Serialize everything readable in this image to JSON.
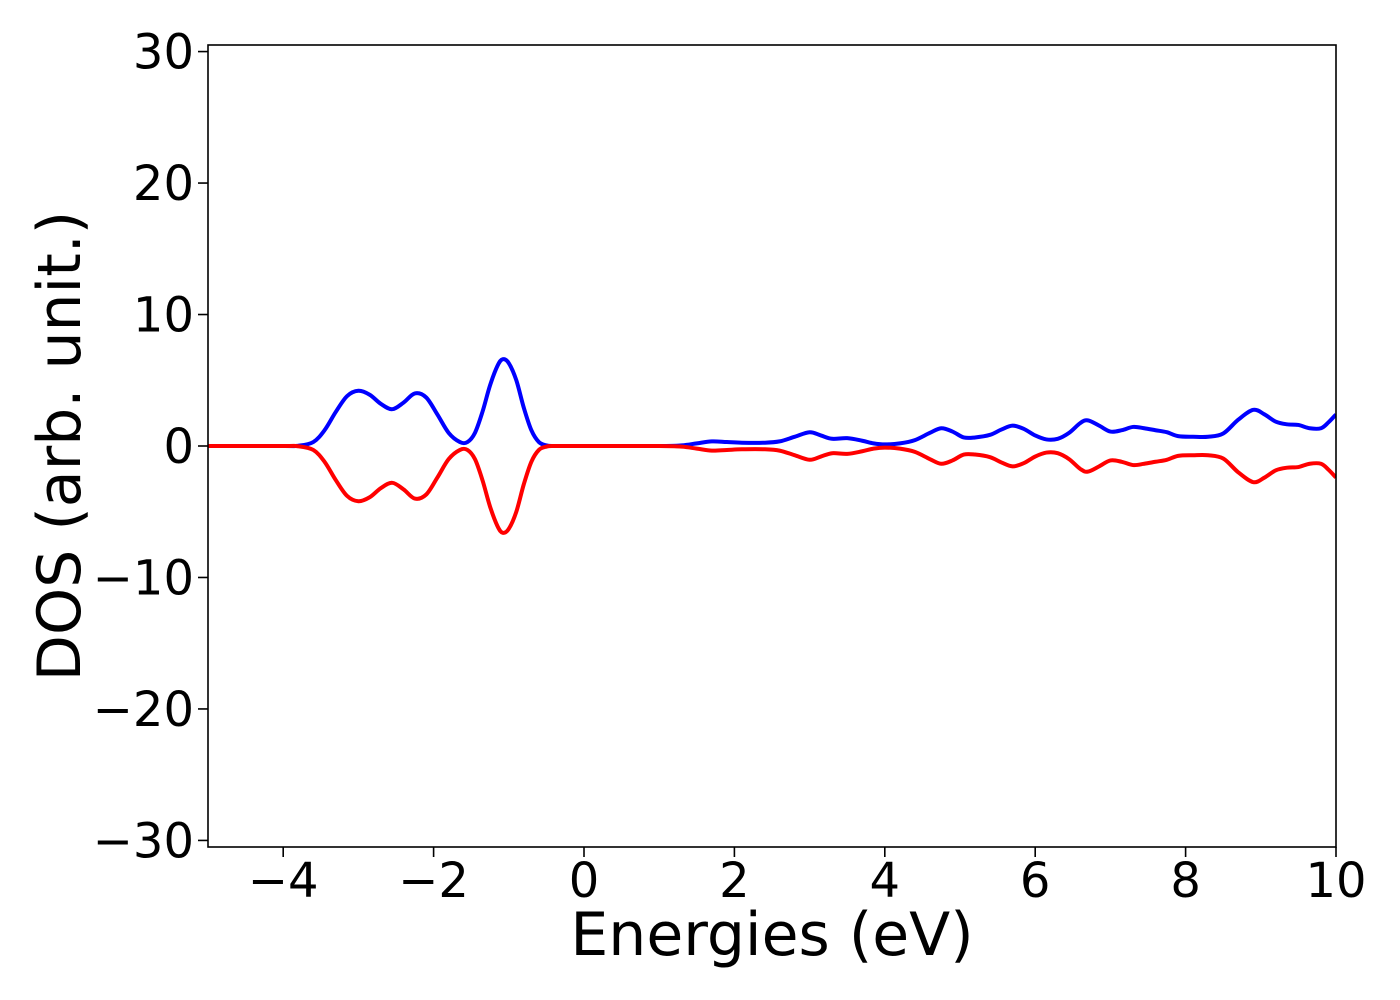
{
  "chart_data": {
    "type": "line",
    "title": "",
    "xlabel": "Energies (eV)",
    "ylabel": "DOS (arb. unit.)",
    "xlim": [
      -5,
      10
    ],
    "ylim": [
      -30.5,
      30.5
    ],
    "x_ticks": [
      -4,
      -2,
      0,
      2,
      4,
      6,
      8,
      10
    ],
    "x_tick_labels": [
      "−4",
      "−2",
      "0",
      "2",
      "4",
      "6",
      "8",
      "10"
    ],
    "y_ticks": [
      -30,
      -20,
      -10,
      0,
      10,
      20,
      30
    ],
    "y_tick_labels": [
      "−30",
      "−20",
      "−10",
      "0",
      "10",
      "20",
      "30"
    ],
    "grid": false,
    "legend": "none",
    "series": [
      {
        "color": "#0000ff",
        "points": [
          [
            -5.0,
            0
          ],
          [
            -4.0,
            0
          ],
          [
            -3.8,
            0.02
          ],
          [
            -3.6,
            0.3
          ],
          [
            -3.45,
            1.2
          ],
          [
            -3.3,
            2.6
          ],
          [
            -3.15,
            3.8
          ],
          [
            -3.0,
            4.2
          ],
          [
            -2.85,
            3.9
          ],
          [
            -2.7,
            3.2
          ],
          [
            -2.55,
            2.8
          ],
          [
            -2.4,
            3.3
          ],
          [
            -2.25,
            4.0
          ],
          [
            -2.1,
            3.7
          ],
          [
            -1.95,
            2.4
          ],
          [
            -1.8,
            1.0
          ],
          [
            -1.65,
            0.3
          ],
          [
            -1.55,
            0.3
          ],
          [
            -1.45,
            1.0
          ],
          [
            -1.35,
            2.6
          ],
          [
            -1.25,
            4.6
          ],
          [
            -1.15,
            6.1
          ],
          [
            -1.08,
            6.6
          ],
          [
            -1.0,
            6.3
          ],
          [
            -0.9,
            5.0
          ],
          [
            -0.8,
            2.9
          ],
          [
            -0.7,
            1.2
          ],
          [
            -0.6,
            0.3
          ],
          [
            -0.5,
            0.05
          ],
          [
            -0.4,
            0.0
          ],
          [
            0.0,
            0.0
          ],
          [
            1.0,
            0.0
          ],
          [
            1.3,
            0.05
          ],
          [
            1.5,
            0.2
          ],
          [
            1.7,
            0.35
          ],
          [
            1.9,
            0.3
          ],
          [
            2.1,
            0.25
          ],
          [
            2.4,
            0.25
          ],
          [
            2.6,
            0.35
          ],
          [
            2.8,
            0.7
          ],
          [
            3.0,
            1.05
          ],
          [
            3.15,
            0.8
          ],
          [
            3.3,
            0.55
          ],
          [
            3.5,
            0.6
          ],
          [
            3.7,
            0.4
          ],
          [
            3.85,
            0.2
          ],
          [
            4.0,
            0.12
          ],
          [
            4.2,
            0.2
          ],
          [
            4.4,
            0.45
          ],
          [
            4.6,
            1.0
          ],
          [
            4.75,
            1.35
          ],
          [
            4.9,
            1.1
          ],
          [
            5.05,
            0.65
          ],
          [
            5.2,
            0.65
          ],
          [
            5.4,
            0.85
          ],
          [
            5.55,
            1.25
          ],
          [
            5.7,
            1.55
          ],
          [
            5.85,
            1.3
          ],
          [
            6.0,
            0.8
          ],
          [
            6.15,
            0.5
          ],
          [
            6.3,
            0.55
          ],
          [
            6.45,
            1.0
          ],
          [
            6.6,
            1.75
          ],
          [
            6.7,
            1.95
          ],
          [
            6.85,
            1.55
          ],
          [
            7.0,
            1.1
          ],
          [
            7.15,
            1.2
          ],
          [
            7.3,
            1.45
          ],
          [
            7.45,
            1.35
          ],
          [
            7.6,
            1.2
          ],
          [
            7.75,
            1.05
          ],
          [
            7.9,
            0.75
          ],
          [
            8.1,
            0.7
          ],
          [
            8.3,
            0.7
          ],
          [
            8.5,
            0.95
          ],
          [
            8.7,
            2.0
          ],
          [
            8.9,
            2.75
          ],
          [
            9.05,
            2.4
          ],
          [
            9.2,
            1.85
          ],
          [
            9.35,
            1.65
          ],
          [
            9.5,
            1.6
          ],
          [
            9.65,
            1.35
          ],
          [
            9.8,
            1.35
          ],
          [
            9.9,
            1.8
          ],
          [
            10.0,
            2.4
          ]
        ]
      },
      {
        "color": "#ff0000",
        "points": [
          [
            -5.0,
            0
          ],
          [
            -4.0,
            0
          ],
          [
            -3.8,
            -0.02
          ],
          [
            -3.6,
            -0.3
          ],
          [
            -3.45,
            -1.2
          ],
          [
            -3.3,
            -2.6
          ],
          [
            -3.15,
            -3.8
          ],
          [
            -3.0,
            -4.2
          ],
          [
            -2.85,
            -3.9
          ],
          [
            -2.7,
            -3.2
          ],
          [
            -2.55,
            -2.8
          ],
          [
            -2.4,
            -3.3
          ],
          [
            -2.25,
            -4.0
          ],
          [
            -2.1,
            -3.7
          ],
          [
            -1.95,
            -2.4
          ],
          [
            -1.8,
            -1.0
          ],
          [
            -1.65,
            -0.3
          ],
          [
            -1.55,
            -0.3
          ],
          [
            -1.45,
            -1.0
          ],
          [
            -1.35,
            -2.6
          ],
          [
            -1.25,
            -4.6
          ],
          [
            -1.15,
            -6.1
          ],
          [
            -1.08,
            -6.6
          ],
          [
            -1.0,
            -6.3
          ],
          [
            -0.9,
            -5.0
          ],
          [
            -0.8,
            -2.9
          ],
          [
            -0.7,
            -1.2
          ],
          [
            -0.6,
            -0.3
          ],
          [
            -0.5,
            -0.05
          ],
          [
            -0.4,
            0.0
          ],
          [
            0.0,
            0.0
          ],
          [
            1.0,
            0.0
          ],
          [
            1.3,
            -0.05
          ],
          [
            1.5,
            -0.2
          ],
          [
            1.7,
            -0.35
          ],
          [
            1.9,
            -0.3
          ],
          [
            2.1,
            -0.25
          ],
          [
            2.4,
            -0.25
          ],
          [
            2.6,
            -0.35
          ],
          [
            2.8,
            -0.7
          ],
          [
            3.0,
            -1.05
          ],
          [
            3.15,
            -0.8
          ],
          [
            3.3,
            -0.55
          ],
          [
            3.5,
            -0.6
          ],
          [
            3.7,
            -0.4
          ],
          [
            3.85,
            -0.2
          ],
          [
            4.0,
            -0.12
          ],
          [
            4.2,
            -0.2
          ],
          [
            4.4,
            -0.45
          ],
          [
            4.6,
            -1.0
          ],
          [
            4.75,
            -1.35
          ],
          [
            4.9,
            -1.1
          ],
          [
            5.05,
            -0.65
          ],
          [
            5.2,
            -0.65
          ],
          [
            5.4,
            -0.85
          ],
          [
            5.55,
            -1.25
          ],
          [
            5.7,
            -1.55
          ],
          [
            5.85,
            -1.3
          ],
          [
            6.0,
            -0.8
          ],
          [
            6.15,
            -0.5
          ],
          [
            6.3,
            -0.55
          ],
          [
            6.45,
            -1.0
          ],
          [
            6.6,
            -1.75
          ],
          [
            6.7,
            -1.95
          ],
          [
            6.85,
            -1.55
          ],
          [
            7.0,
            -1.1
          ],
          [
            7.15,
            -1.2
          ],
          [
            7.3,
            -1.45
          ],
          [
            7.45,
            -1.35
          ],
          [
            7.6,
            -1.2
          ],
          [
            7.75,
            -1.05
          ],
          [
            7.9,
            -0.75
          ],
          [
            8.1,
            -0.7
          ],
          [
            8.3,
            -0.7
          ],
          [
            8.5,
            -0.95
          ],
          [
            8.7,
            -2.0
          ],
          [
            8.9,
            -2.75
          ],
          [
            9.05,
            -2.4
          ],
          [
            9.2,
            -1.85
          ],
          [
            9.35,
            -1.65
          ],
          [
            9.5,
            -1.6
          ],
          [
            9.65,
            -1.35
          ],
          [
            9.8,
            -1.35
          ],
          [
            9.9,
            -1.8
          ],
          [
            10.0,
            -2.4
          ]
        ]
      }
    ]
  }
}
